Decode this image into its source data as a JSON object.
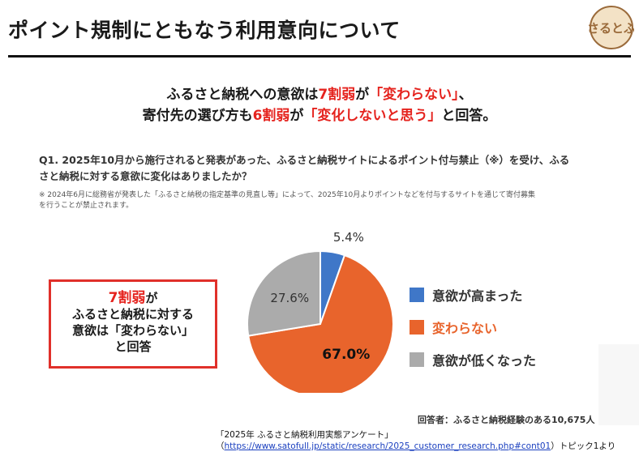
{
  "slide": {
    "title": "ポイント規制にともなう利用意向について",
    "logo_text": "さるとふ"
  },
  "headline": {
    "l1_a": "ふるさと納税への意欲は",
    "l1_b": "7割弱",
    "l1_c": "が",
    "l1_d": "「変わらない」",
    "l1_e": "、",
    "l2_a": "寄付先の選び方も",
    "l2_b": "6割弱",
    "l2_c": "が",
    "l2_d": "「変化しないと思う」",
    "l2_e": "と回答。"
  },
  "question": {
    "line1": "Q1. 2025年10月から施行されると発表があった、ふるさと納税サイトによるポイント付与禁止（※）を受け、ふる",
    "line2": "さと納税に対する意欲に変化はありましたか？"
  },
  "note": {
    "line1": "※ 2024年6月に総務省が発表した「ふるさと納税の指定基準の見直し等」によって、2025年10月よりポイントなどを付与するサイトを通じて寄付募集",
    "line2": "を行うことが禁止されます。"
  },
  "callout": {
    "l1": "7割弱",
    "l1_suffix": "が",
    "l2": "ふるさと納税に対する",
    "l3": "意欲は「変わらない」",
    "l4": "と回答"
  },
  "chart_data": {
    "type": "pie",
    "series": [
      {
        "name": "意欲が高まった",
        "value": 5.4,
        "label": "5.4%",
        "color": "#3f77c8"
      },
      {
        "name": "変わらない",
        "value": 67.0,
        "label": "67.0%",
        "color": "#e8642c"
      },
      {
        "name": "意欲が低くなった",
        "value": 27.6,
        "label": "27.6%",
        "color": "#ababab"
      }
    ],
    "legend_position": "right"
  },
  "respondents": "回答者：ふるさと納税経験のある10,675人",
  "source": {
    "line1": "「2025年 ふるさと納税利用実態アンケート」",
    "open_paren": "（",
    "link": "https://www.satofull.jp/static/research/2025_customer_research.php#cont01",
    "close": "）トピック1より"
  },
  "colors": {
    "accent_red": "#e5231e",
    "logo_brown": "#9a6a3a",
    "logo_bg": "#f3e2c6"
  }
}
